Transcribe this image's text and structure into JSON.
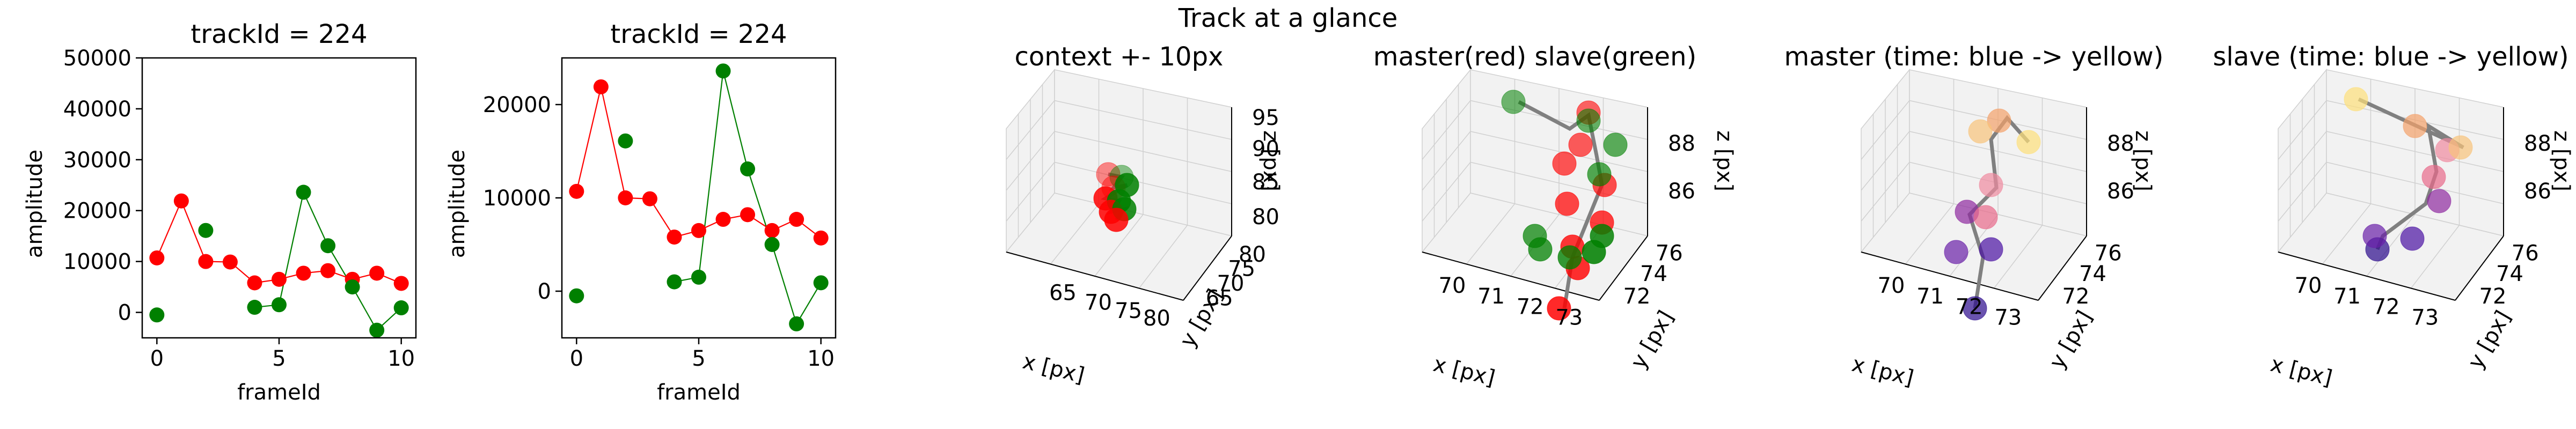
{
  "suptitle": "Track at a glance",
  "colors": {
    "master": "#ff0000",
    "slave": "#008000",
    "line_master": "#ff0000",
    "line_slave": "#008000",
    "track_line": "#808080",
    "pane": "#f2f2f2",
    "grid": "#d0d0d0"
  },
  "chart_data": [
    {
      "type": "scatter",
      "title": "trackId = 224",
      "xlabel": "frameId",
      "ylabel": "amplitude",
      "xlim": [
        -0.6,
        10.6
      ],
      "ylim": [
        -5000,
        50000
      ],
      "xticks": [
        0,
        5,
        10
      ],
      "yticks": [
        0,
        10000,
        20000,
        30000,
        40000,
        50000
      ],
      "series": [
        {
          "color": "#ff0000",
          "x": [
            0,
            1,
            2,
            3,
            4,
            5,
            6,
            7,
            8,
            9,
            10
          ],
          "y": [
            10700,
            21900,
            10000,
            9900,
            5800,
            6500,
            7700,
            8200,
            6500,
            7700,
            5700
          ]
        },
        {
          "color": "#008000",
          "x": [
            0,
            2,
            4,
            5,
            6,
            7,
            8,
            9,
            10
          ],
          "y": [
            -500,
            16100,
            1000,
            1500,
            23600,
            13100,
            5000,
            -3500,
            900
          ],
          "connected": [
            false,
            false,
            true,
            true,
            true,
            true,
            true,
            true,
            true
          ]
        }
      ]
    },
    {
      "type": "scatter",
      "title": "trackId = 224",
      "xlabel": "frameId",
      "ylabel": "amplitude",
      "xlim": [
        -0.6,
        10.6
      ],
      "ylim": [
        -5000,
        25000
      ],
      "xticks": [
        0,
        5,
        10
      ],
      "yticks": [
        0,
        10000,
        20000
      ],
      "series": [
        {
          "color": "#ff0000",
          "x": [
            0,
            1,
            2,
            3,
            4,
            5,
            6,
            7,
            8,
            9,
            10
          ],
          "y": [
            10700,
            21900,
            10000,
            9900,
            5800,
            6500,
            7700,
            8200,
            6500,
            7700,
            5700
          ]
        },
        {
          "color": "#008000",
          "x": [
            0,
            2,
            4,
            5,
            6,
            7,
            8,
            9,
            10
          ],
          "y": [
            -500,
            16100,
            1000,
            1500,
            23600,
            13100,
            5000,
            -3500,
            900
          ],
          "connected": [
            false,
            false,
            true,
            true,
            true,
            true,
            true,
            true,
            true
          ]
        }
      ]
    },
    {
      "type": "scatter3d",
      "title": "context +- 10px",
      "xlabel": "x [px]",
      "ylabel": "y [px]",
      "zlabel": "z [px]",
      "xticks": [
        "65",
        "70",
        "75",
        "80"
      ],
      "yticks": [
        "65",
        "70",
        "75",
        "80"
      ],
      "zticks": [
        "80",
        "85",
        "90",
        "95"
      ]
    },
    {
      "type": "scatter3d",
      "title": "master(red) slave(green)",
      "xlabel": "x [px]",
      "ylabel": "y [px]",
      "zlabel": "z [px]",
      "xticks": [
        "70",
        "71",
        "72",
        "73"
      ],
      "yticks": [
        "72",
        "74",
        "76"
      ],
      "zticks": [
        "86",
        "88"
      ]
    },
    {
      "type": "scatter3d",
      "title": "master (time: blue -> yellow)",
      "xlabel": "x [px]",
      "ylabel": "y [px]",
      "zlabel": "z [px]",
      "xticks": [
        "70",
        "71",
        "72",
        "73"
      ],
      "yticks": [
        "72",
        "74",
        "76"
      ],
      "zticks": [
        "86",
        "88"
      ]
    },
    {
      "type": "scatter3d",
      "title": "slave (time: blue -> yellow)",
      "xlabel": "x [px]",
      "ylabel": "y [px]",
      "zlabel": "z [px]",
      "xticks": [
        "70",
        "71",
        "72",
        "73"
      ],
      "yticks": [
        "72",
        "74",
        "76"
      ],
      "zticks": [
        "86",
        "88"
      ]
    }
  ]
}
